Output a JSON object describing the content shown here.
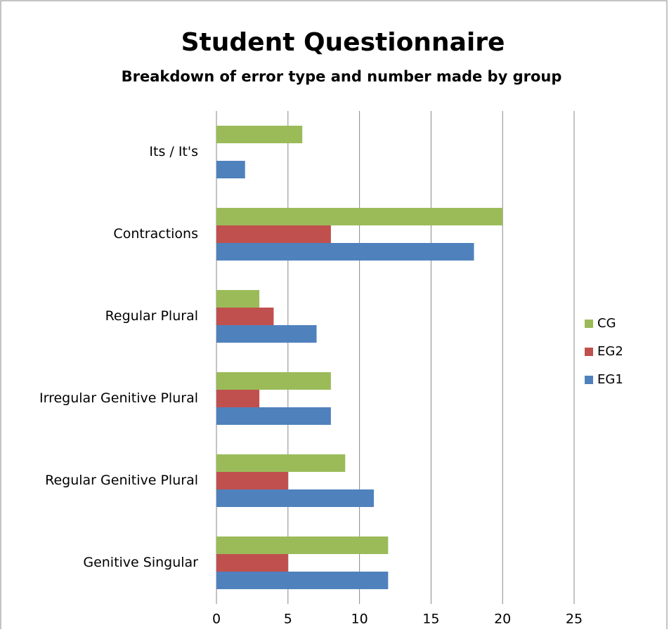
{
  "chart_data": {
    "type": "bar",
    "orientation": "horizontal",
    "title": "Student Questionnaire",
    "subtitle": "Breakdown of error type and number made by group",
    "categories": [
      "Genitive Singular",
      "Regular Genitive Plural",
      "Irregular Genitive Plural",
      "Regular Plural",
      "Contractions",
      "Its / It's"
    ],
    "series": [
      {
        "name": "EG1",
        "color": "#4f81bd",
        "values": [
          12,
          11,
          8,
          7,
          18,
          2
        ]
      },
      {
        "name": "EG2",
        "color": "#c0504d",
        "values": [
          5,
          5,
          3,
          4,
          8,
          0
        ]
      },
      {
        "name": "CG",
        "color": "#9bbb59",
        "values": [
          12,
          9,
          8,
          3,
          20,
          6
        ]
      }
    ],
    "xlim": [
      0,
      25
    ],
    "xticks": [
      0,
      5,
      10,
      15,
      20,
      25
    ],
    "grid": true,
    "legend": "right"
  }
}
